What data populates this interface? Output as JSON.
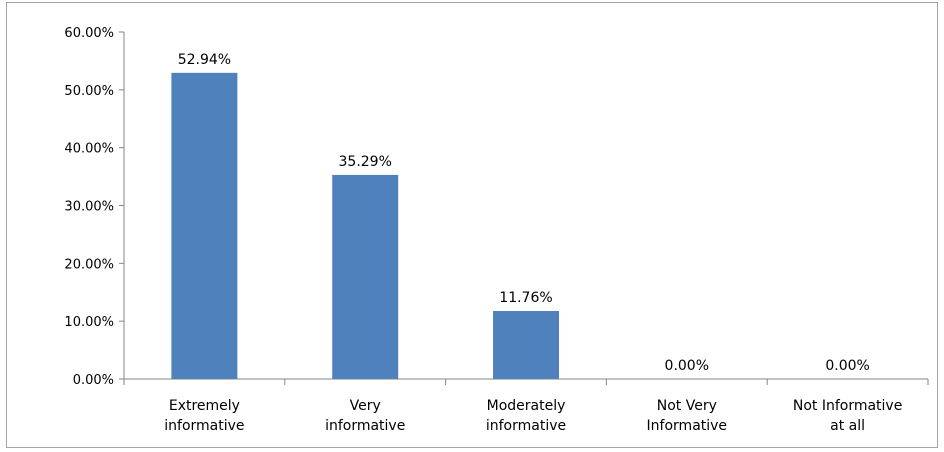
{
  "chart_data": {
    "type": "bar",
    "categories": [
      [
        "Extremely",
        "informative"
      ],
      [
        "Very",
        "informative"
      ],
      [
        "Moderately",
        "informative"
      ],
      [
        "Not Very",
        "Informative"
      ],
      [
        "Not Informative",
        "at all"
      ]
    ],
    "values": [
      52.94,
      35.29,
      11.76,
      0.0,
      0.0
    ],
    "data_labels": [
      "52.94%",
      "35.29%",
      "11.76%",
      "0.00%",
      "0.00%"
    ],
    "y_ticks": [
      "0.00%",
      "10.00%",
      "20.00%",
      "30.00%",
      "40.00%",
      "50.00%",
      "60.00%"
    ],
    "ylim": [
      0,
      60
    ],
    "title": "",
    "xlabel": "",
    "ylabel": "",
    "grid": false,
    "legend": "none",
    "bar_color": "#4f81bd"
  }
}
